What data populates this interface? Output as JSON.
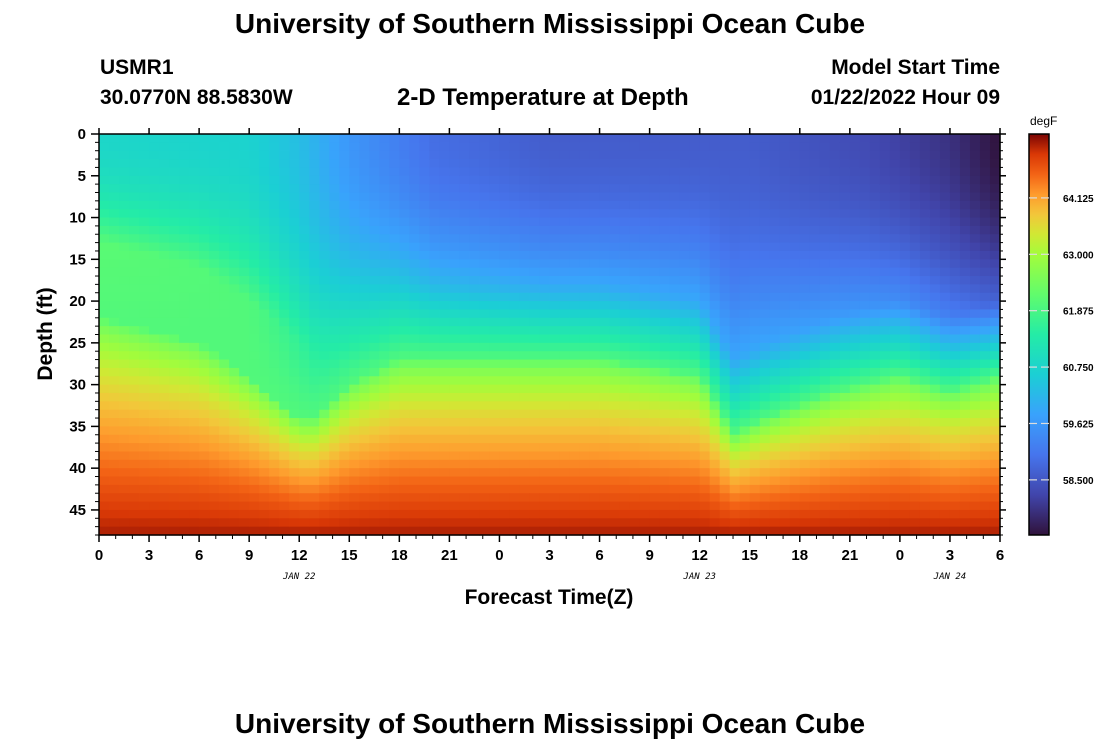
{
  "header": {
    "title": "University of Southern Mississippi Ocean Cube",
    "station": "USMR1",
    "coords": "30.0770N  88.5830W",
    "subtitle": "2-D Temperature at Depth",
    "model_start_label": "Model Start Time",
    "model_start_value": "01/22/2022 Hour 09"
  },
  "footer": {
    "title": "University of Southern Mississippi Ocean Cube"
  },
  "chart_data": {
    "type": "heatmap",
    "title": "2-D Temperature at Depth",
    "xlabel": "Forecast Time(Z)",
    "ylabel": "Depth (ft)",
    "x_tick_labels": [
      "0",
      "3",
      "6",
      "9",
      "12",
      "15",
      "18",
      "21",
      "0",
      "3",
      "6",
      "9",
      "12",
      "15",
      "18",
      "21",
      "0",
      "3",
      "6"
    ],
    "x_range_hours": [
      0,
      54
    ],
    "date_labels": [
      {
        "text": "JAN 22",
        "hour": 12
      },
      {
        "text": "JAN 23",
        "hour": 36
      },
      {
        "text": "JAN 24",
        "hour": 51
      }
    ],
    "y_ticks": [
      0,
      5,
      10,
      15,
      20,
      25,
      30,
      35,
      40,
      45
    ],
    "y_range": [
      0,
      48
    ],
    "colorbar": {
      "units": "degF",
      "range": [
        57.4,
        65.4
      ],
      "ticks": [
        "64.125",
        "63.000",
        "61.875",
        "60.750",
        "59.625",
        "58.500"
      ]
    },
    "surface_temp_degF": [
      {
        "hour": 0,
        "value": 60.8
      },
      {
        "hour": 9,
        "value": 60.7
      },
      {
        "hour": 12,
        "value": 60.3
      },
      {
        "hour": 15,
        "value": 59.6
      },
      {
        "hour": 20,
        "value": 58.9
      },
      {
        "hour": 27,
        "value": 58.6
      },
      {
        "hour": 33,
        "value": 58.6
      },
      {
        "hour": 39,
        "value": 58.6
      },
      {
        "hour": 46,
        "value": 58.3
      },
      {
        "hour": 51,
        "value": 57.9
      },
      {
        "hour": 54,
        "value": 57.4
      }
    ],
    "thermocline_depth_ft": [
      {
        "hour": 0,
        "value": 18
      },
      {
        "hour": 6,
        "value": 21
      },
      {
        "hour": 9,
        "value": 25
      },
      {
        "hour": 12,
        "value": 30
      },
      {
        "hour": 13,
        "value": 30
      },
      {
        "hour": 15,
        "value": 26
      },
      {
        "hour": 18,
        "value": 23
      },
      {
        "hour": 24,
        "value": 23
      },
      {
        "hour": 30,
        "value": 23
      },
      {
        "hour": 36,
        "value": 25
      },
      {
        "hour": 38,
        "value": 32
      },
      {
        "hour": 40,
        "value": 30
      },
      {
        "hour": 44,
        "value": 27
      },
      {
        "hour": 48,
        "value": 25
      },
      {
        "hour": 51,
        "value": 27
      },
      {
        "hour": 54,
        "value": 25
      }
    ]
  }
}
